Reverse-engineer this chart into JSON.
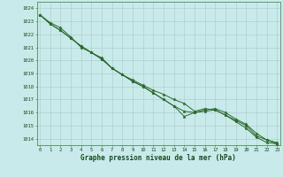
{
  "x": [
    0,
    1,
    2,
    3,
    4,
    5,
    6,
    7,
    8,
    9,
    10,
    11,
    12,
    13,
    14,
    15,
    16,
    17,
    18,
    19,
    20,
    21,
    22,
    23
  ],
  "line1": [
    1023.5,
    1022.9,
    1022.5,
    1021.8,
    1021.0,
    1020.6,
    1020.2,
    1019.4,
    1018.9,
    1018.5,
    1018.1,
    1017.7,
    1017.4,
    1017.0,
    1016.7,
    1016.1,
    1016.3,
    1016.2,
    1015.8,
    1015.4,
    1015.0,
    1014.2,
    1013.9,
    1013.7
  ],
  "line2": [
    1023.5,
    1022.8,
    1022.3,
    1021.7,
    1021.1,
    1020.6,
    1020.1,
    1019.4,
    1018.9,
    1018.4,
    1018.0,
    1017.5,
    1017.0,
    1016.5,
    1016.1,
    1016.0,
    1016.1,
    1016.2,
    1015.8,
    1015.3,
    1014.8,
    1014.1,
    1013.7,
    1013.6
  ],
  "line3": [
    1023.5,
    1022.8,
    1022.3,
    1021.7,
    1021.1,
    1020.6,
    1020.1,
    1019.4,
    1018.9,
    1018.4,
    1018.0,
    1017.5,
    1017.0,
    1016.5,
    1015.7,
    1016.0,
    1016.2,
    1016.3,
    1016.0,
    1015.5,
    1015.1,
    1014.4,
    1013.9,
    1013.6
  ],
  "bg_color": "#c8eaea",
  "grid_color": "#b0c8c8",
  "line_color": "#2d6a2d",
  "ylabel_ticks": [
    1014,
    1015,
    1016,
    1017,
    1018,
    1019,
    1020,
    1021,
    1022,
    1023,
    1024
  ],
  "xlabel_ticks": [
    0,
    1,
    2,
    3,
    4,
    5,
    6,
    7,
    8,
    9,
    10,
    11,
    12,
    13,
    14,
    15,
    16,
    17,
    18,
    19,
    20,
    21,
    22,
    23
  ],
  "xlabel": "Graphe pression niveau de la mer (hPa)",
  "ylim": [
    1013.5,
    1024.5
  ],
  "xlim": [
    -0.3,
    23.3
  ],
  "tick_fontsize": 4.0,
  "xlabel_fontsize": 5.5,
  "line_width": 0.7,
  "marker_size": 2.5
}
